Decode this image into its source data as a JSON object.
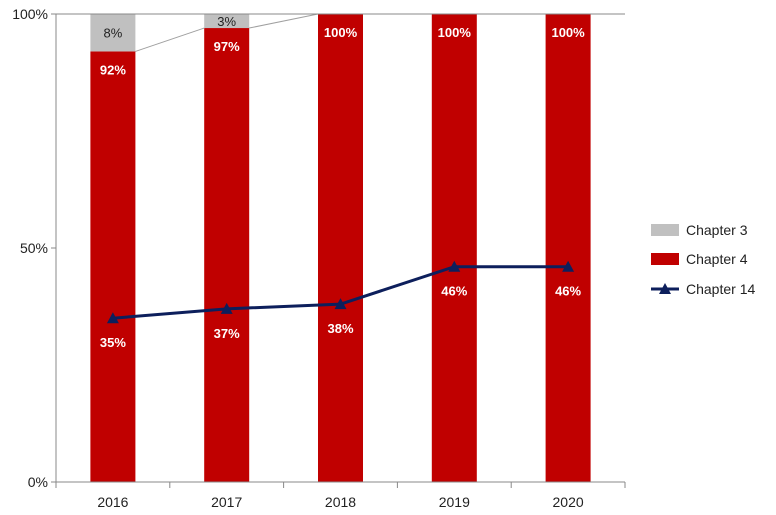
{
  "chart_data": {
    "type": "bar",
    "stacked": true,
    "categories": [
      "2016",
      "2017",
      "2018",
      "2019",
      "2020"
    ],
    "series": [
      {
        "name": "Chapter 3",
        "kind": "bar",
        "color": "#c0c0c0",
        "values": [
          8,
          3,
          0,
          0,
          0
        ],
        "labels": [
          "8%",
          "3%",
          "",
          "",
          ""
        ]
      },
      {
        "name": "Chapter 4",
        "kind": "bar",
        "color": "#c00000",
        "values": [
          92,
          97,
          100,
          100,
          100
        ],
        "labels": [
          "92%",
          "97%",
          "100%",
          "100%",
          "100%"
        ]
      },
      {
        "name": "Chapter 14",
        "kind": "line",
        "color": "#0d1f5c",
        "values": [
          35,
          37,
          38,
          46,
          46
        ],
        "labels": [
          "35%",
          "37%",
          "38%",
          "46%",
          "46%"
        ]
      }
    ],
    "ylim": [
      0,
      100
    ],
    "yticks": [
      "0%",
      "50%",
      "100%"
    ],
    "legend": "right",
    "grid": false,
    "xlabel": "",
    "ylabel": ""
  }
}
